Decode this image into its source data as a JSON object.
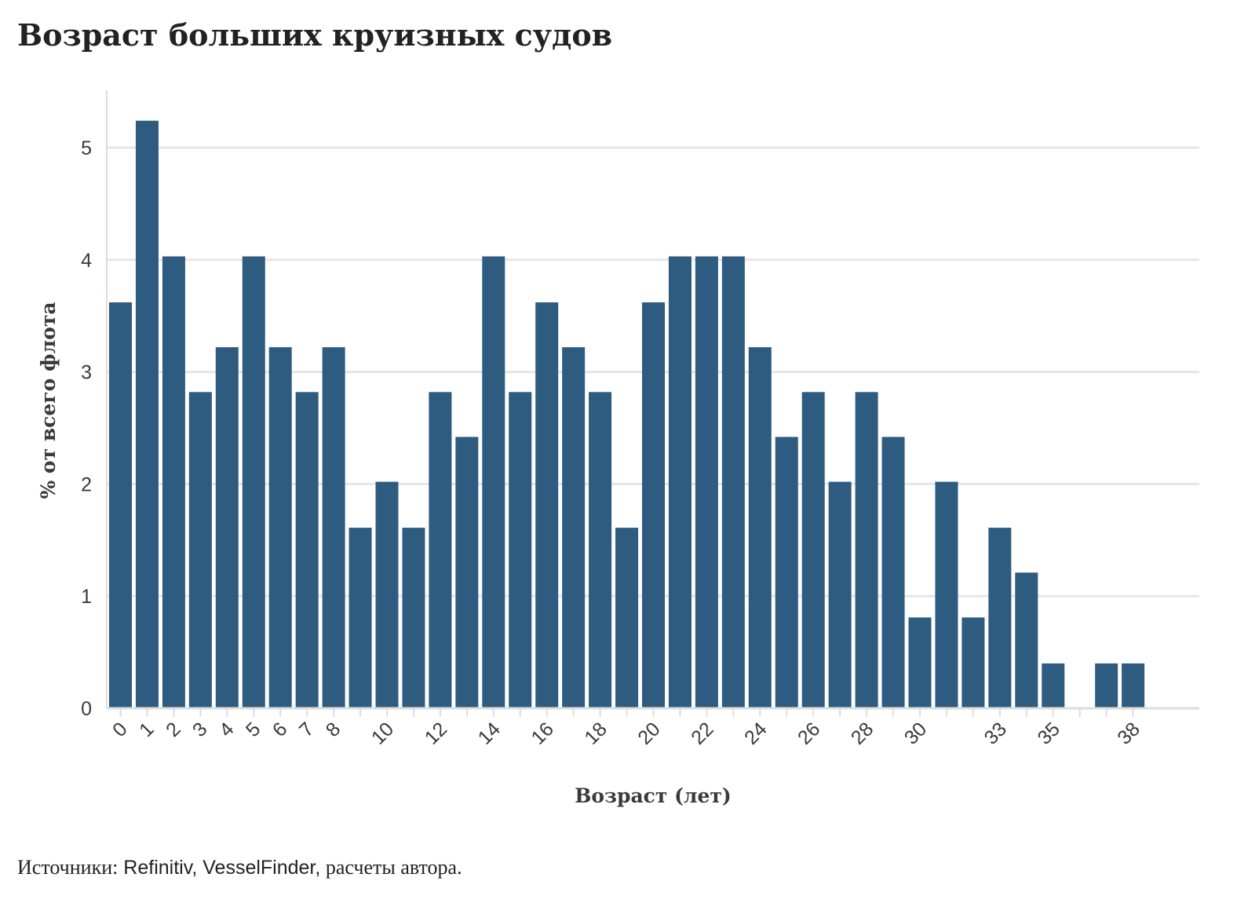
{
  "title": "Возраст больших круизных судов",
  "source": {
    "prefix": "Источники:",
    "middle": " Refinitiv, VesselFinder,",
    "suffix": " расчеты автора."
  },
  "colors": {
    "bar": "#2e5b80",
    "grid": "#e6e6e6",
    "axis": "#dddddd",
    "text": "#3a3a3a"
  },
  "chart_data": {
    "type": "bar",
    "title": "Возраст больших круизных судов",
    "xlabel": "Возраст (лет)",
    "ylabel": "% от всего флота",
    "x": [
      0,
      1,
      2,
      3,
      4,
      5,
      6,
      7,
      8,
      9,
      10,
      11,
      12,
      13,
      14,
      15,
      16,
      17,
      18,
      19,
      20,
      21,
      22,
      23,
      24,
      25,
      26,
      27,
      28,
      29,
      30,
      31,
      32,
      33,
      34,
      35,
      36,
      37,
      38
    ],
    "values": [
      3.62,
      5.24,
      4.03,
      2.82,
      3.22,
      4.03,
      3.22,
      2.82,
      3.22,
      1.61,
      2.02,
      1.61,
      2.82,
      2.42,
      4.03,
      2.82,
      3.62,
      3.22,
      2.82,
      1.61,
      3.62,
      4.03,
      4.03,
      4.03,
      3.22,
      2.42,
      2.82,
      2.02,
      2.82,
      2.42,
      0.81,
      2.02,
      0.81,
      1.61,
      1.21,
      0.4,
      0,
      0.4,
      0.4
    ],
    "x_tick_labels": [
      "0",
      "1",
      "2",
      "3",
      "4",
      "5",
      "6",
      "7",
      "8",
      "10",
      "12",
      "14",
      "16",
      "18",
      "20",
      "22",
      "24",
      "26",
      "28",
      "30",
      "33",
      "35",
      "38"
    ],
    "y_ticks": [
      0,
      1,
      2,
      3,
      4,
      5
    ],
    "ylim": [
      0,
      5.5
    ],
    "grid": "horizontal",
    "legend": "none"
  }
}
